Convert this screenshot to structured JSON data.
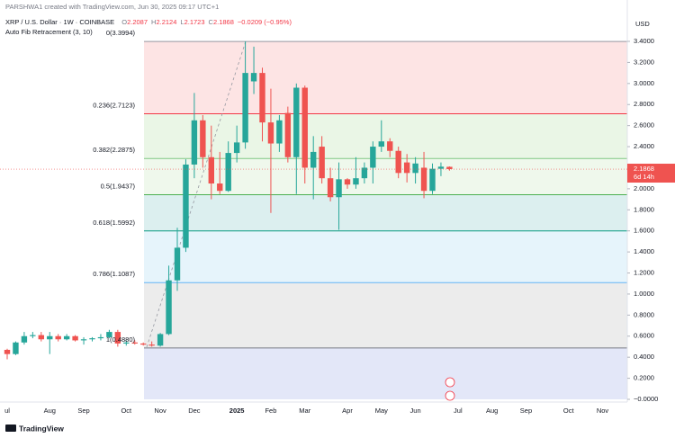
{
  "chart_data": {
    "type": "candlestick",
    "watermark_line": "PARSHWA1 created with TradingView.com, Jun 30, 2025 09:17 UTC+1",
    "title": "XRP / U.S. Dollar · 1W · COINBASE",
    "ohlc_legend": [
      {
        "key": "O",
        "text": "2.2087"
      },
      {
        "key": "H",
        "text": "2.2124"
      },
      {
        "key": "L",
        "text": "2.1723"
      },
      {
        "key": "C",
        "text": "2.1868"
      }
    ],
    "change": "−0.0209 (−0.95%)",
    "indicator": "Auto Fib Retracement (3, 10)",
    "currency": "USD",
    "countdown": "6d 14h",
    "footer": "TradingView",
    "up_color": "#26a69a",
    "down_color": "#ef5350",
    "categories": [
      "ul",
      null,
      null,
      null,
      null,
      "Aug",
      null,
      null,
      null,
      "Sep",
      null,
      null,
      null,
      null,
      "Oct",
      null,
      null,
      null,
      "Nov",
      null,
      null,
      null,
      "Dec",
      null,
      null,
      null,
      null,
      "2025",
      null,
      null,
      null,
      "Feb",
      null,
      null,
      null,
      "Mar",
      null,
      null,
      null,
      null,
      "Apr",
      null,
      null,
      null,
      "May",
      null,
      null,
      null,
      "Jun",
      null,
      null,
      null,
      null,
      "Jul",
      null,
      null,
      null,
      "Aug",
      null,
      null,
      null,
      "Sep",
      null,
      null,
      null,
      null,
      "Oct",
      null,
      null,
      null,
      "Nov"
    ],
    "open": [
      0.47,
      0.43,
      0.54,
      0.6,
      0.61,
      0.57,
      0.6,
      0.57,
      0.6,
      0.56,
      0.57,
      0.58,
      0.59,
      0.64,
      0.53,
      0.54,
      0.53,
      0.52,
      0.51,
      0.62,
      1.13,
      1.44,
      2.23,
      2.65,
      2.3,
      2.05,
      1.98,
      2.34,
      2.44,
      3.02,
      3.1,
      2.63,
      2.43,
      2.72,
      2.3,
      2.96,
      2.2,
      2.4,
      2.1,
      1.92,
      2.09,
      2.04,
      2.1,
      2.2,
      2.4,
      2.45,
      2.36,
      2.25,
      2.15,
      2.2,
      1.98,
      2.19,
      2.2087,
      null,
      null,
      null,
      null,
      null,
      null,
      null,
      null,
      null,
      null,
      null,
      null,
      null,
      null,
      null,
      null,
      null,
      null
    ],
    "high": [
      0.48,
      0.55,
      0.64,
      0.64,
      0.64,
      0.64,
      0.62,
      0.62,
      0.61,
      0.59,
      0.59,
      0.62,
      0.66,
      0.66,
      0.56,
      0.56,
      0.54,
      0.55,
      0.63,
      1.27,
      1.63,
      2.28,
      2.91,
      2.7,
      2.6,
      2.35,
      2.45,
      2.6,
      3.4,
      3.35,
      3.15,
      2.95,
      2.7,
      2.78,
      3.0,
      2.98,
      2.5,
      2.5,
      2.2,
      2.25,
      2.1,
      2.3,
      2.25,
      2.45,
      2.65,
      2.48,
      2.4,
      2.33,
      2.3,
      2.35,
      2.24,
      2.25,
      2.2124,
      null,
      null,
      null,
      null,
      null,
      null,
      null,
      null,
      null,
      null,
      null,
      null,
      null,
      null,
      null,
      null,
      null,
      null
    ],
    "low": [
      0.38,
      0.42,
      0.52,
      0.58,
      0.55,
      0.43,
      0.55,
      0.56,
      0.55,
      0.52,
      0.55,
      0.56,
      0.58,
      0.5,
      0.51,
      0.52,
      0.51,
      0.5,
      0.5,
      0.61,
      1.03,
      1.4,
      2.1,
      2.2,
      1.9,
      1.95,
      1.97,
      2.25,
      2.38,
      2.9,
      2.45,
      1.77,
      2.35,
      2.25,
      1.95,
      2.05,
      1.9,
      2.05,
      1.88,
      1.61,
      2.0,
      2.0,
      2.05,
      2.05,
      2.35,
      2.3,
      2.1,
      2.06,
      2.05,
      1.91,
      1.95,
      2.12,
      2.1723,
      null,
      null,
      null,
      null,
      null,
      null,
      null,
      null,
      null,
      null,
      null,
      null,
      null,
      null,
      null,
      null,
      null,
      null
    ],
    "close": [
      0.43,
      0.54,
      0.6,
      0.61,
      0.57,
      0.6,
      0.57,
      0.6,
      0.56,
      0.57,
      0.58,
      0.59,
      0.64,
      0.53,
      0.54,
      0.53,
      0.52,
      0.51,
      0.62,
      1.13,
      1.44,
      2.23,
      2.65,
      2.3,
      2.05,
      1.98,
      2.34,
      2.44,
      3.1,
      3.1,
      2.63,
      2.43,
      2.65,
      2.3,
      2.96,
      2.2,
      2.35,
      2.1,
      1.92,
      2.09,
      2.04,
      2.1,
      2.2,
      2.4,
      2.45,
      2.36,
      2.15,
      2.15,
      2.24,
      1.98,
      2.19,
      2.21,
      2.1868,
      null,
      null,
      null,
      null,
      null,
      null,
      null,
      null,
      null,
      null,
      null,
      null,
      null,
      null,
      null,
      null,
      null,
      null
    ],
    "fib_levels": [
      {
        "price": 3.3994,
        "label": "0(3.3994)",
        "color": "#9598a1",
        "fill": "#fde4e4"
      },
      {
        "price": 2.7123,
        "label": "0.236(2.7123)",
        "color": "#f23645",
        "fill": "#eaf6e6"
      },
      {
        "price": 2.2875,
        "label": "0.382(2.2875)",
        "color": "#81c784",
        "fill": "#eff8ec"
      },
      {
        "price": 1.9437,
        "label": "0.5(1.9437)",
        "color": "#4caf50",
        "fill": "#dcefef"
      },
      {
        "price": 1.5992,
        "label": "0.618(1.5992)",
        "color": "#089981",
        "fill": "#e6f4fb"
      },
      {
        "price": 1.1087,
        "label": "0.786(1.1087)",
        "color": "#64b5f6",
        "fill": "#ececec"
      },
      {
        "price": 0.488,
        "label": "1(0.4880)",
        "color": "#787b86",
        "fill": "#e3e7f8"
      }
    ],
    "ylim": [
      0,
      3.4
    ],
    "yticks": [
      {
        "value": 3.4,
        "label": "3.4000"
      },
      {
        "value": 3.2,
        "label": "3.2000"
      },
      {
        "value": 3.0,
        "label": "3.0000"
      },
      {
        "value": 2.8,
        "label": "2.8000"
      },
      {
        "value": 2.6,
        "label": "2.6000"
      },
      {
        "value": 2.4,
        "label": "2.4000"
      },
      {
        "value": 2.2,
        "label": "2.2000"
      },
      {
        "value": 2.0,
        "label": "2.0000"
      },
      {
        "value": 1.8,
        "label": "1.8000"
      },
      {
        "value": 1.6,
        "label": "1.6000"
      },
      {
        "value": 1.4,
        "label": "1.4000"
      },
      {
        "value": 1.2,
        "label": "1.2000"
      },
      {
        "value": 1.0,
        "label": "1.0000"
      },
      {
        "value": 0.8,
        "label": "0.8000"
      },
      {
        "value": 0.6,
        "label": "0.6000"
      },
      {
        "value": 0.4,
        "label": "0.4000"
      },
      {
        "value": 0.2,
        "label": "0.2000"
      },
      {
        "value": 0,
        "label": "−0.0000"
      }
    ],
    "grid": false
  }
}
